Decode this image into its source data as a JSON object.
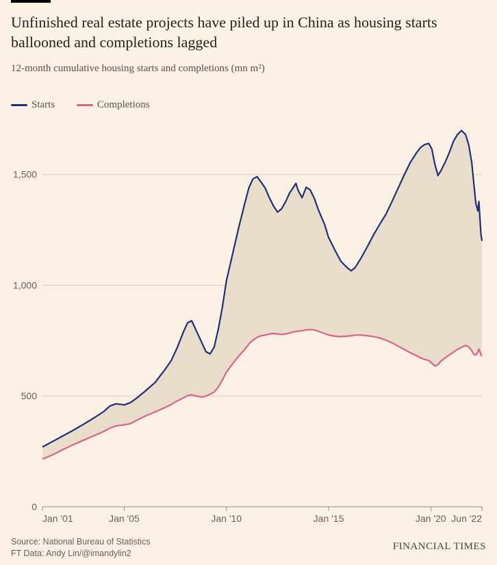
{
  "title": "Unfinished real estate projects have piled up in China as housing starts ballooned and completions lagged",
  "subtitle": "12-month cumulative housing starts and completions (mn m²)",
  "legend": {
    "series1": "Starts",
    "series2": "Completions"
  },
  "source_line1": "Source: National Bureau of Statistics",
  "source_line2": "FT Data: Andy Lin/@imandylin2",
  "brand": "FINANCIAL TIMES",
  "chart": {
    "type": "line-area",
    "background_color": "#fbf0e4",
    "fill_color": "#e8dccb",
    "grid_color": "#d8cfc3",
    "axis_color": "#928a82",
    "text_color": "#6b615a",
    "series": [
      {
        "name": "Starts",
        "color": "#1f2e7a",
        "width": 2.2
      },
      {
        "name": "Completions",
        "color": "#d9628a",
        "width": 2.2
      }
    ],
    "x_domain": [
      2001.0,
      2022.5
    ],
    "y_domain": [
      0,
      1700
    ],
    "y_ticks": [
      0,
      500,
      1000,
      1500
    ],
    "x_tick_positions": [
      2001,
      2005,
      2010,
      2015,
      2020,
      2022.5
    ],
    "x_tick_labels": [
      "Jan '01",
      "Jan '05",
      "Jan '10",
      "Jan '15",
      "Jan '20",
      "Jun '22"
    ],
    "label_fontsize": 14,
    "starts": [
      [
        2001.0,
        270
      ],
      [
        2001.5,
        295
      ],
      [
        2002.0,
        320
      ],
      [
        2002.5,
        345
      ],
      [
        2003.0,
        372
      ],
      [
        2003.5,
        400
      ],
      [
        2004.0,
        430
      ],
      [
        2004.3,
        455
      ],
      [
        2004.6,
        465
      ],
      [
        2005.0,
        460
      ],
      [
        2005.3,
        470
      ],
      [
        2005.6,
        490
      ],
      [
        2006.0,
        520
      ],
      [
        2006.5,
        560
      ],
      [
        2007.0,
        620
      ],
      [
        2007.3,
        660
      ],
      [
        2007.6,
        720
      ],
      [
        2007.9,
        790
      ],
      [
        2008.1,
        830
      ],
      [
        2008.3,
        840
      ],
      [
        2008.5,
        800
      ],
      [
        2008.8,
        740
      ],
      [
        2009.0,
        700
      ],
      [
        2009.2,
        690
      ],
      [
        2009.4,
        720
      ],
      [
        2009.6,
        800
      ],
      [
        2009.8,
        900
      ],
      [
        2010.0,
        1020
      ],
      [
        2010.3,
        1140
      ],
      [
        2010.6,
        1260
      ],
      [
        2010.9,
        1370
      ],
      [
        2011.1,
        1440
      ],
      [
        2011.3,
        1480
      ],
      [
        2011.5,
        1490
      ],
      [
        2011.7,
        1465
      ],
      [
        2011.9,
        1438
      ],
      [
        2012.1,
        1395
      ],
      [
        2012.3,
        1358
      ],
      [
        2012.5,
        1330
      ],
      [
        2012.7,
        1345
      ],
      [
        2012.9,
        1378
      ],
      [
        2013.1,
        1418
      ],
      [
        2013.3,
        1445
      ],
      [
        2013.4,
        1460
      ],
      [
        2013.5,
        1430
      ],
      [
        2013.7,
        1395
      ],
      [
        2013.8,
        1418
      ],
      [
        2013.9,
        1442
      ],
      [
        2014.1,
        1430
      ],
      [
        2014.3,
        1392
      ],
      [
        2014.5,
        1340
      ],
      [
        2014.8,
        1275
      ],
      [
        2015.0,
        1215
      ],
      [
        2015.3,
        1160
      ],
      [
        2015.6,
        1108
      ],
      [
        2015.9,
        1080
      ],
      [
        2016.1,
        1065
      ],
      [
        2016.3,
        1080
      ],
      [
        2016.6,
        1125
      ],
      [
        2016.9,
        1175
      ],
      [
        2017.2,
        1228
      ],
      [
        2017.5,
        1275
      ],
      [
        2017.8,
        1320
      ],
      [
        2018.1,
        1378
      ],
      [
        2018.4,
        1438
      ],
      [
        2018.7,
        1498
      ],
      [
        2019.0,
        1555
      ],
      [
        2019.3,
        1598
      ],
      [
        2019.5,
        1622
      ],
      [
        2019.7,
        1635
      ],
      [
        2019.9,
        1640
      ],
      [
        2020.05,
        1615
      ],
      [
        2020.2,
        1545
      ],
      [
        2020.35,
        1495
      ],
      [
        2020.5,
        1518
      ],
      [
        2020.7,
        1555
      ],
      [
        2020.9,
        1598
      ],
      [
        2021.1,
        1648
      ],
      [
        2021.3,
        1680
      ],
      [
        2021.5,
        1698
      ],
      [
        2021.7,
        1680
      ],
      [
        2021.85,
        1635
      ],
      [
        2022.0,
        1555
      ],
      [
        2022.1,
        1462
      ],
      [
        2022.2,
        1370
      ],
      [
        2022.3,
        1335
      ],
      [
        2022.35,
        1378
      ],
      [
        2022.4,
        1305
      ],
      [
        2022.45,
        1232
      ],
      [
        2022.5,
        1200
      ]
    ],
    "completions": [
      [
        2001.0,
        215
      ],
      [
        2001.5,
        235
      ],
      [
        2002.0,
        258
      ],
      [
        2002.5,
        280
      ],
      [
        2003.0,
        300
      ],
      [
        2003.5,
        320
      ],
      [
        2004.0,
        340
      ],
      [
        2004.3,
        355
      ],
      [
        2004.6,
        365
      ],
      [
        2005.0,
        370
      ],
      [
        2005.3,
        375
      ],
      [
        2005.6,
        390
      ],
      [
        2006.0,
        408
      ],
      [
        2006.5,
        428
      ],
      [
        2007.0,
        448
      ],
      [
        2007.3,
        462
      ],
      [
        2007.6,
        478
      ],
      [
        2007.9,
        492
      ],
      [
        2008.1,
        502
      ],
      [
        2008.3,
        505
      ],
      [
        2008.5,
        500
      ],
      [
        2008.8,
        495
      ],
      [
        2009.0,
        500
      ],
      [
        2009.2,
        508
      ],
      [
        2009.4,
        518
      ],
      [
        2009.6,
        540
      ],
      [
        2009.8,
        572
      ],
      [
        2010.0,
        608
      ],
      [
        2010.3,
        645
      ],
      [
        2010.6,
        680
      ],
      [
        2010.9,
        710
      ],
      [
        2011.1,
        735
      ],
      [
        2011.3,
        752
      ],
      [
        2011.5,
        765
      ],
      [
        2011.7,
        772
      ],
      [
        2011.9,
        775
      ],
      [
        2012.1,
        780
      ],
      [
        2012.3,
        782
      ],
      [
        2012.5,
        780
      ],
      [
        2012.7,
        778
      ],
      [
        2012.9,
        780
      ],
      [
        2013.1,
        785
      ],
      [
        2013.3,
        790
      ],
      [
        2013.5,
        792
      ],
      [
        2013.7,
        795
      ],
      [
        2013.9,
        798
      ],
      [
        2014.1,
        800
      ],
      [
        2014.3,
        798
      ],
      [
        2014.5,
        792
      ],
      [
        2014.8,
        782
      ],
      [
        2015.0,
        775
      ],
      [
        2015.3,
        770
      ],
      [
        2015.6,
        768
      ],
      [
        2015.9,
        770
      ],
      [
        2016.1,
        772
      ],
      [
        2016.3,
        775
      ],
      [
        2016.6,
        775
      ],
      [
        2016.9,
        772
      ],
      [
        2017.2,
        768
      ],
      [
        2017.5,
        762
      ],
      [
        2017.8,
        752
      ],
      [
        2018.1,
        740
      ],
      [
        2018.4,
        725
      ],
      [
        2018.7,
        710
      ],
      [
        2019.0,
        695
      ],
      [
        2019.3,
        682
      ],
      [
        2019.5,
        672
      ],
      [
        2019.7,
        665
      ],
      [
        2019.9,
        660
      ],
      [
        2020.05,
        648
      ],
      [
        2020.2,
        635
      ],
      [
        2020.35,
        642
      ],
      [
        2020.5,
        658
      ],
      [
        2020.7,
        672
      ],
      [
        2020.9,
        685
      ],
      [
        2021.1,
        698
      ],
      [
        2021.3,
        710
      ],
      [
        2021.5,
        720
      ],
      [
        2021.7,
        728
      ],
      [
        2021.85,
        722
      ],
      [
        2022.0,
        705
      ],
      [
        2022.1,
        688
      ],
      [
        2022.2,
        685
      ],
      [
        2022.3,
        698
      ],
      [
        2022.35,
        712
      ],
      [
        2022.4,
        700
      ],
      [
        2022.45,
        685
      ],
      [
        2022.5,
        680
      ]
    ]
  }
}
